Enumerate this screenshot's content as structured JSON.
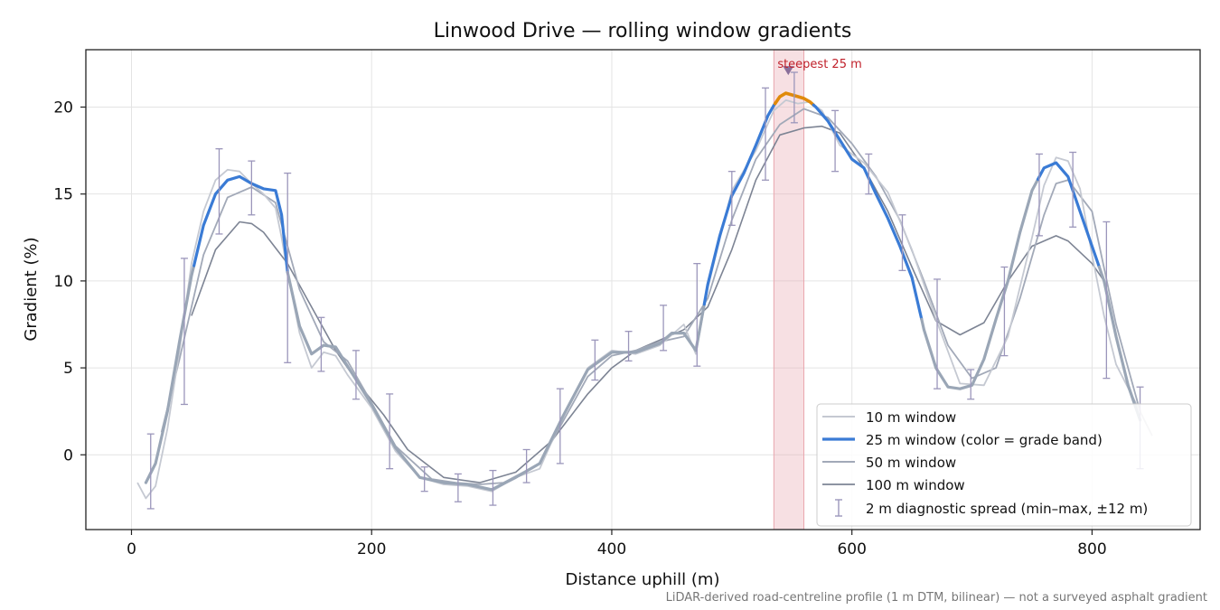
{
  "chart_data": {
    "type": "line",
    "title": "Linwood Drive — rolling window gradients",
    "xlabel": "Distance uphill (m)",
    "ylabel": "Gradient (%)",
    "xlim": [
      -38,
      890
    ],
    "ylim": [
      -4.3,
      23.3
    ],
    "xticks": [
      0,
      200,
      400,
      600,
      800
    ],
    "yticks": [
      0,
      5,
      10,
      15,
      20
    ],
    "grid": true,
    "legend_position": "lower-right",
    "colors": {
      "w10": "#c5c9d2",
      "w25_base": "#9aa6b6",
      "w25_steep": "#3a7bd5",
      "w25_max": "#e08a0b",
      "w50": "#a2a9b8",
      "w100": "#7d8494",
      "spread": "#9b96bb",
      "highlight": "#e9a6ae",
      "annotation": "#c0202a"
    },
    "highlight_band": {
      "x0": 535,
      "x1": 560,
      "label": "steepest 25 m",
      "marker_x": 547,
      "marker_y": 22.1
    },
    "series": [
      {
        "key": "w10",
        "name": "10 m window",
        "x": [
          5,
          12,
          20,
          30,
          40,
          50,
          60,
          70,
          80,
          90,
          100,
          110,
          120,
          125,
          130,
          140,
          150,
          160,
          170,
          180,
          200,
          220,
          240,
          260,
          280,
          300,
          320,
          340,
          360,
          380,
          400,
          420,
          440,
          460,
          470,
          480,
          500,
          520,
          535,
          545,
          555,
          565,
          575,
          590,
          610,
          630,
          650,
          670,
          690,
          710,
          730,
          750,
          760,
          770,
          780,
          790,
          800,
          810,
          820,
          840,
          850
        ],
        "y": [
          -1.6,
          -2.5,
          -1.8,
          1.5,
          6.0,
          11.0,
          14.0,
          15.8,
          16.4,
          16.3,
          15.6,
          15.0,
          14.2,
          12.5,
          10.5,
          7.0,
          5.0,
          5.9,
          5.7,
          4.6,
          2.7,
          0.2,
          -1.3,
          -1.7,
          -1.8,
          -2.1,
          -1.3,
          -0.8,
          2.3,
          5.0,
          6.0,
          5.8,
          6.3,
          7.5,
          5.8,
          9.6,
          15.2,
          17.5,
          19.8,
          20.4,
          20.2,
          20.3,
          19.8,
          17.8,
          16.8,
          15.1,
          11.8,
          7.8,
          4.1,
          4.0,
          6.8,
          12.5,
          15.5,
          17.1,
          16.9,
          15.3,
          11.5,
          8.0,
          5.2,
          2.5,
          1.1
        ]
      },
      {
        "key": "w25",
        "name": "25 m window (color = grade band)",
        "x": [
          12,
          20,
          30,
          40,
          50,
          60,
          70,
          80,
          90,
          100,
          110,
          120,
          125,
          130,
          140,
          150,
          160,
          170,
          180,
          200,
          220,
          240,
          260,
          280,
          300,
          320,
          340,
          360,
          380,
          400,
          420,
          440,
          450,
          460,
          470,
          480,
          490,
          500,
          510,
          520,
          530,
          535,
          540,
          545,
          550,
          555,
          560,
          565,
          570,
          580,
          590,
          600,
          610,
          620,
          630,
          640,
          650,
          660,
          670,
          680,
          690,
          700,
          710,
          720,
          730,
          740,
          750,
          760,
          770,
          780,
          790,
          800,
          810,
          820,
          830,
          840
        ],
        "y": [
          -1.6,
          -0.5,
          2.5,
          6.5,
          10.3,
          13.2,
          15.0,
          15.8,
          16.0,
          15.6,
          15.3,
          15.2,
          13.8,
          10.5,
          7.4,
          5.8,
          6.3,
          6.2,
          5.1,
          2.9,
          0.4,
          -1.3,
          -1.6,
          -1.7,
          -2.0,
          -1.3,
          -0.5,
          2.3,
          4.9,
          5.9,
          5.9,
          6.4,
          7.0,
          7.0,
          6.0,
          9.8,
          12.6,
          14.9,
          16.2,
          17.8,
          19.5,
          20.1,
          20.6,
          20.8,
          20.7,
          20.6,
          20.5,
          20.3,
          20.0,
          19.2,
          18.1,
          17.0,
          16.5,
          15.0,
          13.6,
          12.0,
          10.2,
          7.2,
          5.0,
          3.9,
          3.8,
          4.0,
          5.5,
          7.8,
          10.0,
          12.8,
          15.2,
          16.5,
          16.8,
          16.0,
          14.0,
          12.0,
          10.0,
          6.8,
          4.0,
          2.0
        ],
        "bands": [
          {
            "range": [
              12,
              52
            ],
            "band": "base"
          },
          {
            "range": [
              52,
              130
            ],
            "band": "steep"
          },
          {
            "range": [
              130,
              477
            ],
            "band": "base"
          },
          {
            "range": [
              477,
              536
            ],
            "band": "steep"
          },
          {
            "range": [
              536,
              568
            ],
            "band": "max"
          },
          {
            "range": [
              568,
              658
            ],
            "band": "steep"
          },
          {
            "range": [
              658,
              755
            ],
            "band": "base"
          },
          {
            "range": [
              755,
              806
            ],
            "band": "steep"
          },
          {
            "range": [
              806,
              840
            ],
            "band": "base"
          }
        ]
      },
      {
        "key": "w50",
        "name": "50 m window",
        "x": [
          25,
          40,
          60,
          80,
          100,
          120,
          130,
          140,
          160,
          180,
          200,
          220,
          250,
          270,
          290,
          310,
          340,
          360,
          380,
          400,
          420,
          440,
          460,
          480,
          500,
          520,
          540,
          560,
          580,
          600,
          620,
          640,
          660,
          680,
          700,
          720,
          740,
          760,
          770,
          780,
          800,
          820,
          840
        ],
        "y": [
          1.3,
          5.5,
          11.5,
          14.8,
          15.4,
          14.5,
          12.0,
          9.5,
          6.5,
          5.4,
          3.0,
          0.5,
          -1.4,
          -1.6,
          -1.7,
          -1.6,
          -0.5,
          2.0,
          4.5,
          5.7,
          6.0,
          6.5,
          6.8,
          9.0,
          13.5,
          17.0,
          19.0,
          19.9,
          19.4,
          17.9,
          16.0,
          13.5,
          10.0,
          6.3,
          4.4,
          5.0,
          9.0,
          13.8,
          15.6,
          15.8,
          14.0,
          7.5,
          2.5
        ]
      },
      {
        "key": "w100",
        "name": "100 m window",
        "x": [
          50,
          70,
          90,
          100,
          110,
          130,
          150,
          170,
          190,
          210,
          230,
          260,
          290,
          320,
          350,
          380,
          400,
          420,
          440,
          460,
          480,
          500,
          520,
          540,
          560,
          575,
          590,
          610,
          630,
          650,
          670,
          690,
          710,
          730,
          750,
          770,
          780,
          800,
          810
        ],
        "y": [
          8.0,
          11.8,
          13.4,
          13.3,
          12.8,
          11.0,
          8.5,
          6.0,
          4.0,
          2.3,
          0.3,
          -1.3,
          -1.6,
          -1.0,
          0.8,
          3.5,
          5.0,
          6.0,
          6.6,
          7.2,
          8.5,
          11.8,
          15.8,
          18.4,
          18.8,
          18.9,
          18.5,
          16.5,
          14.0,
          10.8,
          7.7,
          6.9,
          7.6,
          10.0,
          12.0,
          12.6,
          12.3,
          11.0,
          10.0
        ]
      }
    ],
    "spread": {
      "name": "2 m diagnostic spread (min–max, ±12 m)",
      "x": [
        16,
        44,
        73,
        100,
        130,
        158,
        187,
        215,
        244,
        272,
        301,
        329,
        357,
        386,
        414,
        443,
        471,
        500,
        528,
        552,
        586,
        614,
        642,
        671,
        699,
        727,
        756,
        784,
        812,
        840
      ],
      "ymin": [
        -3.1,
        2.9,
        12.7,
        13.8,
        5.3,
        4.8,
        3.2,
        -0.8,
        -2.1,
        -2.7,
        -2.9,
        -1.6,
        -0.5,
        4.3,
        5.4,
        6.0,
        5.1,
        13.2,
        15.8,
        19.1,
        16.3,
        15.0,
        10.6,
        3.8,
        3.2,
        5.7,
        12.6,
        13.1,
        4.4,
        -0.8
      ],
      "ymax": [
        1.2,
        11.3,
        17.6,
        16.9,
        16.2,
        7.9,
        6.0,
        3.5,
        -0.7,
        -1.1,
        -0.9,
        0.3,
        3.8,
        6.6,
        7.1,
        8.6,
        11.0,
        16.3,
        21.1,
        22.0,
        19.8,
        17.3,
        13.8,
        10.1,
        4.9,
        10.8,
        17.3,
        17.4,
        13.4,
        3.9
      ]
    },
    "footnote": "LiDAR-derived road-centreline profile (1 m DTM, bilinear) — not a surveyed asphalt gradient"
  }
}
